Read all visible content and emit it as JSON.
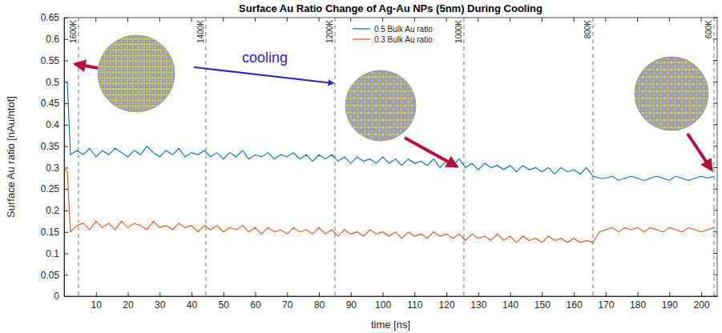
{
  "chart_data": {
    "type": "line",
    "title": "Surface Au Ratio Change of Ag-Au NPs (5nm) During Cooling",
    "xlabel": "time [ns]",
    "ylabel": "Surface Au ratio [nAu/ntot]",
    "xlim": [
      0,
      205
    ],
    "ylim": [
      0,
      0.65
    ],
    "xticks": [
      10,
      20,
      30,
      40,
      50,
      60,
      70,
      80,
      90,
      100,
      110,
      120,
      130,
      140,
      150,
      160,
      170,
      180,
      190,
      200
    ],
    "yticks": [
      0,
      0.05,
      0.1,
      0.15,
      0.2,
      0.25,
      0.3,
      0.35,
      0.4,
      0.45,
      0.5,
      0.55,
      0.6,
      0.65
    ],
    "grid": false,
    "legend": "top",
    "x": [
      0,
      1,
      2,
      4,
      6,
      8,
      10,
      12,
      14,
      16,
      18,
      20,
      22,
      24,
      26,
      28,
      30,
      32,
      34,
      36,
      38,
      40,
      42,
      44,
      46,
      48,
      50,
      52,
      54,
      56,
      58,
      60,
      62,
      64,
      66,
      68,
      70,
      72,
      74,
      76,
      78,
      80,
      82,
      84,
      86,
      88,
      90,
      92,
      94,
      96,
      98,
      100,
      102,
      104,
      106,
      108,
      110,
      112,
      114,
      116,
      118,
      120,
      122,
      124,
      126,
      128,
      130,
      132,
      134,
      136,
      138,
      140,
      142,
      144,
      146,
      148,
      150,
      152,
      154,
      156,
      158,
      160,
      162,
      164,
      166,
      168,
      170,
      172,
      174,
      176,
      178,
      180,
      182,
      184,
      186,
      188,
      190,
      192,
      194,
      196,
      198,
      200,
      202,
      204
    ],
    "series": [
      {
        "name": "0.5 Bulk Au ratio",
        "color": "#0072bd",
        "values": [
          0.5,
          0.5,
          0.33,
          0.34,
          0.33,
          0.345,
          0.325,
          0.34,
          0.33,
          0.345,
          0.335,
          0.325,
          0.34,
          0.33,
          0.35,
          0.335,
          0.325,
          0.34,
          0.33,
          0.345,
          0.325,
          0.335,
          0.33,
          0.34,
          0.325,
          0.335,
          0.32,
          0.335,
          0.325,
          0.34,
          0.32,
          0.33,
          0.325,
          0.335,
          0.32,
          0.33,
          0.325,
          0.335,
          0.32,
          0.33,
          0.315,
          0.33,
          0.32,
          0.33,
          0.315,
          0.325,
          0.31,
          0.325,
          0.315,
          0.32,
          0.31,
          0.325,
          0.31,
          0.32,
          0.305,
          0.32,
          0.31,
          0.315,
          0.305,
          0.32,
          0.3,
          0.315,
          0.305,
          0.32,
          0.3,
          0.31,
          0.295,
          0.31,
          0.3,
          0.305,
          0.295,
          0.305,
          0.29,
          0.305,
          0.295,
          0.3,
          0.29,
          0.3,
          0.285,
          0.3,
          0.29,
          0.295,
          0.285,
          0.3,
          0.28,
          0.275,
          0.275,
          0.28,
          0.27,
          0.275,
          0.28,
          0.275,
          0.27,
          0.275,
          0.28,
          0.275,
          0.27,
          0.28,
          0.275,
          0.27,
          0.275,
          0.28,
          0.275,
          0.28
        ]
      },
      {
        "name": "0.3 Bulk Au ratio",
        "color": "#d95319",
        "values": [
          0.3,
          0.29,
          0.15,
          0.165,
          0.17,
          0.155,
          0.175,
          0.16,
          0.17,
          0.155,
          0.175,
          0.16,
          0.17,
          0.165,
          0.155,
          0.175,
          0.16,
          0.165,
          0.155,
          0.17,
          0.16,
          0.165,
          0.15,
          0.165,
          0.155,
          0.165,
          0.15,
          0.16,
          0.155,
          0.165,
          0.15,
          0.16,
          0.145,
          0.16,
          0.15,
          0.155,
          0.145,
          0.16,
          0.15,
          0.155,
          0.145,
          0.16,
          0.145,
          0.155,
          0.14,
          0.155,
          0.145,
          0.15,
          0.14,
          0.155,
          0.145,
          0.15,
          0.14,
          0.15,
          0.135,
          0.15,
          0.14,
          0.145,
          0.135,
          0.15,
          0.14,
          0.145,
          0.135,
          0.145,
          0.13,
          0.145,
          0.135,
          0.14,
          0.13,
          0.145,
          0.13,
          0.14,
          0.125,
          0.14,
          0.13,
          0.135,
          0.125,
          0.14,
          0.13,
          0.135,
          0.125,
          0.135,
          0.125,
          0.13,
          0.125,
          0.15,
          0.155,
          0.16,
          0.15,
          0.16,
          0.155,
          0.16,
          0.15,
          0.16,
          0.155,
          0.15,
          0.16,
          0.155,
          0.15,
          0.16,
          0.155,
          0.15,
          0.155,
          0.16
        ]
      }
    ],
    "vlines": [
      {
        "x": 4.5,
        "label": "1600K"
      },
      {
        "x": 44.5,
        "label": "1400K"
      },
      {
        "x": 85,
        "label": "1200K"
      },
      {
        "x": 125.5,
        "label": "1000K"
      },
      {
        "x": 166,
        "label": "800K"
      },
      {
        "x": 204,
        "label": "600K"
      }
    ],
    "annotations": [
      {
        "text": "cooling"
      }
    ]
  }
}
